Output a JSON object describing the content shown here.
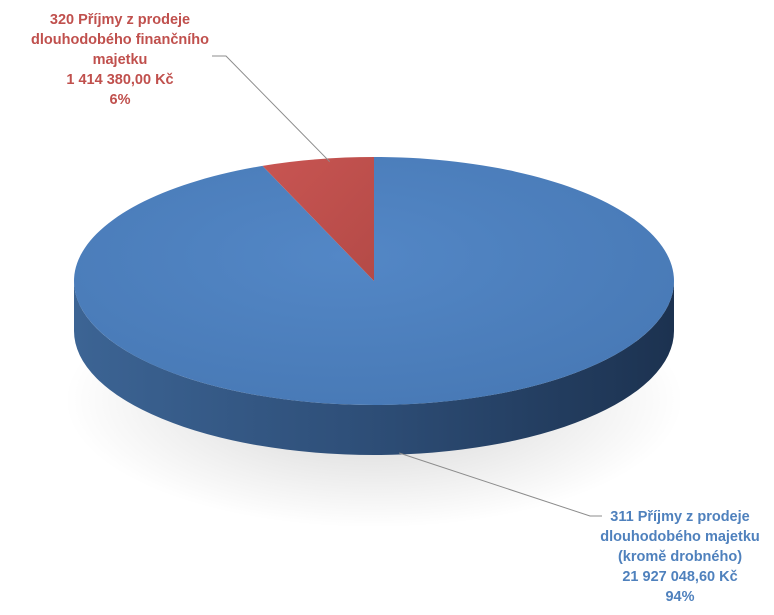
{
  "chart_data": {
    "type": "pie",
    "title": "",
    "style": "3d",
    "legend": "none",
    "slices": [
      {
        "name": "311 Příjmy z prodeje dlouhodobého majetku (kromě drobného)",
        "value": 21927048.6,
        "percent": 94,
        "color": "#4f81bd",
        "label_lines": [
          "311 Příjmy z prodeje",
          "dlouhodobého majetku",
          "(kromě drobného)",
          "21 927 048,60 Kč",
          "94%"
        ]
      },
      {
        "name": "320 Příjmy z prodeje dlouhodobého finančního majetku",
        "value": 1414380.0,
        "percent": 6,
        "color": "#c0504d",
        "label_lines": [
          "320 Příjmy z prodeje",
          "dlouhodobého finančního",
          "majetku",
          "1 414 380,00 Kč",
          "6%"
        ]
      }
    ]
  }
}
